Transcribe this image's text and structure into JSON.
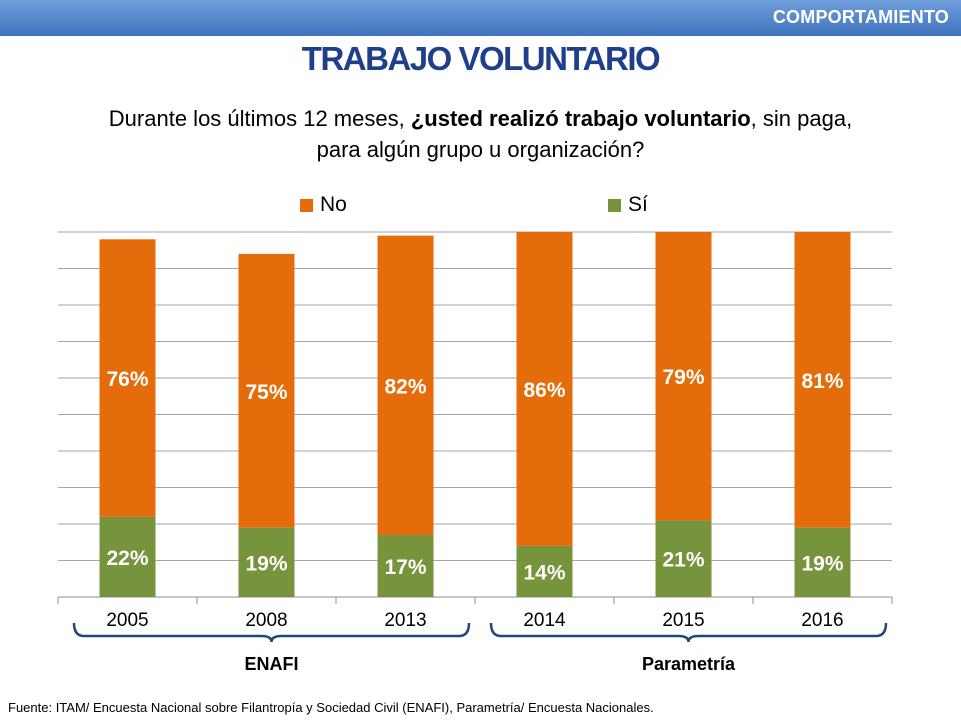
{
  "header": {
    "section_label": "COMPORTAMIENTO",
    "title": "TRABAJO VOLUNTARIO"
  },
  "question": {
    "line1_prefix": "Durante los últimos 12 meses, ",
    "line1_bold": "¿usted realizó trabajo voluntario",
    "line1_suffix": ", sin paga,",
    "line2": "para algún grupo u organización?"
  },
  "colors": {
    "no": "#e46c0a",
    "si": "#77933c",
    "header_bar": "#4f81bd",
    "title": "#1f3f8a",
    "bracket": "#1f497d"
  },
  "chart_data": {
    "type": "bar",
    "stacked": true,
    "categories": [
      "2005",
      "2008",
      "2013",
      "2014",
      "2015",
      "2016"
    ],
    "series": [
      {
        "name": "Sí",
        "values": [
          22,
          19,
          17,
          14,
          21,
          19
        ],
        "labels": [
          "22%",
          "19%",
          "17%",
          "14%",
          "21%",
          "19%"
        ]
      },
      {
        "name": "No",
        "values": [
          76,
          75,
          82,
          86,
          79,
          81
        ],
        "labels": [
          "76%",
          "75%",
          "82%",
          "86%",
          "79%",
          "81%"
        ]
      }
    ],
    "ylim": [
      0,
      100
    ],
    "grid": true,
    "legend": "top",
    "groups": [
      {
        "label": "ENAFI",
        "categories": [
          "2005",
          "2008",
          "2013"
        ]
      },
      {
        "label": "Parametría",
        "categories": [
          "2014",
          "2015",
          "2016"
        ]
      }
    ]
  },
  "source": "Fuente: ITAM/ Encuesta Nacional sobre Filantropía y Sociedad Civil (ENAFI), Parametría/ Encuesta Nacionales."
}
